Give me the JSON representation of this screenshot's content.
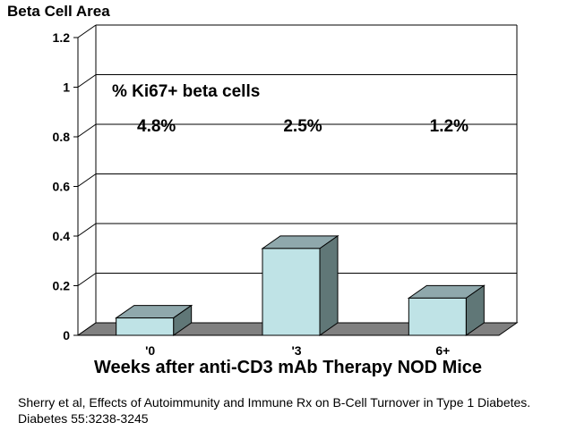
{
  "chart_data": {
    "type": "bar",
    "title": "",
    "ylabel": "Beta Cell Area",
    "xlabel": "Weeks after anti-CD3 mAb Therapy NOD Mice",
    "categories": [
      "'0",
      "'3",
      "6+"
    ],
    "values": [
      0.07,
      0.35,
      0.15
    ],
    "ylim": [
      0,
      1.2
    ],
    "yticks": [
      "0",
      "0.2",
      "0.4",
      "0.6",
      "0.8",
      "1",
      "1.2"
    ],
    "annotation_title": "% Ki67+ beta cells",
    "annotations": [
      "4.8%",
      "2.5%",
      "1.2%"
    ],
    "grid": true,
    "bar_colors": {
      "front": "#bfe3e6",
      "top": "#8fa8ac",
      "side": "#607777"
    },
    "floor_color": "#808080"
  },
  "source": "Sherry et al, Effects of Autoimmunity and Immune Rx on B-Cell Turnover in Type 1 Diabetes.  Diabetes  55:3238-3245"
}
